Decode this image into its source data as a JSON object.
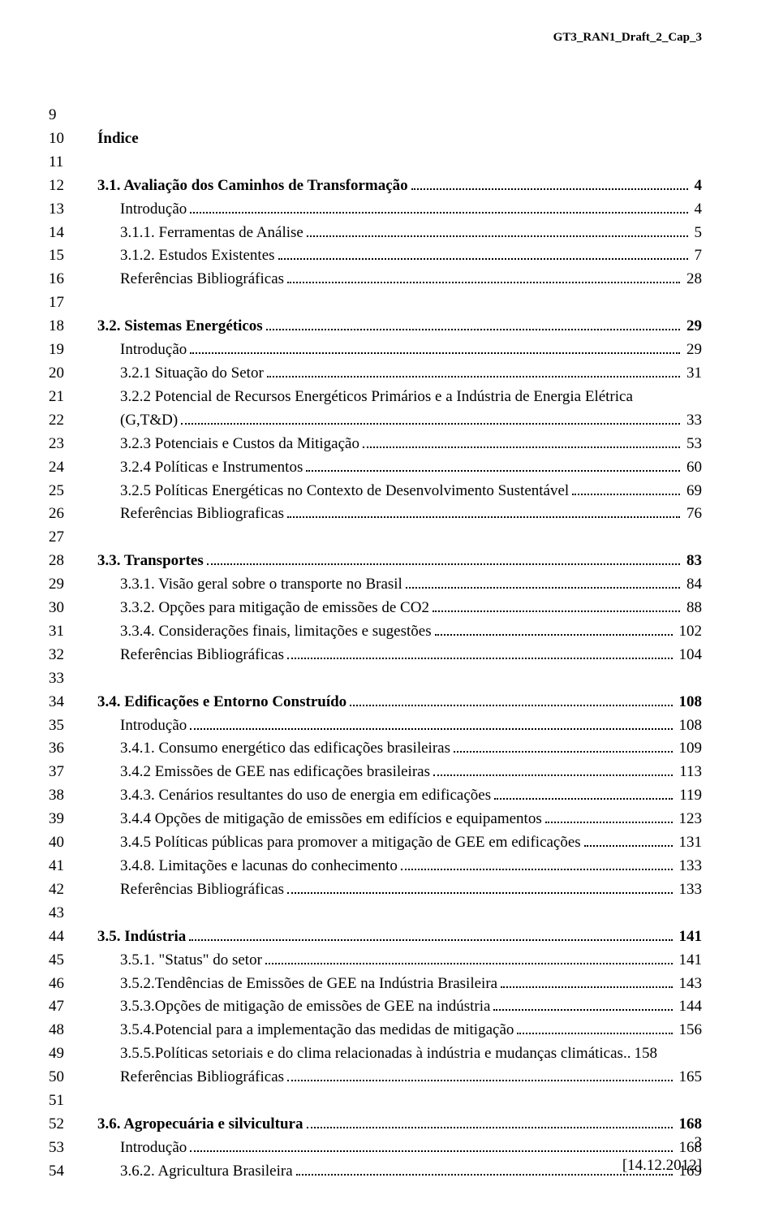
{
  "header": "GT3_RAN1_Draft_2_Cap_3",
  "title": "Índice",
  "lines": [
    {
      "n": "9",
      "type": "blank"
    },
    {
      "n": "10",
      "type": "title"
    },
    {
      "n": "11",
      "type": "blank"
    },
    {
      "n": "12",
      "type": "entry",
      "bold": true,
      "indent": 0,
      "text": "3.1. Avaliação dos Caminhos de Transformação",
      "page": "4"
    },
    {
      "n": "13",
      "type": "entry",
      "bold": false,
      "indent": 1,
      "text": "Introdução",
      "page": "4"
    },
    {
      "n": "14",
      "type": "entry",
      "bold": false,
      "indent": 1,
      "text": "3.1.1. Ferramentas de Análise",
      "page": "5"
    },
    {
      "n": "15",
      "type": "entry",
      "bold": false,
      "indent": 1,
      "text": "3.1.2. Estudos Existentes",
      "page": "7"
    },
    {
      "n": "16",
      "type": "entry",
      "bold": false,
      "indent": 1,
      "text": "Referências Bibliográficas",
      "page": "28"
    },
    {
      "n": "17",
      "type": "blank"
    },
    {
      "n": "18",
      "type": "entry",
      "bold": true,
      "indent": 0,
      "text": "3.2. Sistemas Energéticos",
      "page": "29"
    },
    {
      "n": "19",
      "type": "entry",
      "bold": false,
      "indent": 1,
      "text": "Introdução",
      "page": "29"
    },
    {
      "n": "20",
      "type": "entry",
      "bold": false,
      "indent": 1,
      "text": "3.2.1 Situação do Setor",
      "page": "31"
    },
    {
      "n": "21",
      "type": "wraptop",
      "bold": false,
      "indent": 1,
      "text": "3.2.2 Potencial de Recursos Energéticos Primários e a Indústria de Energia Elétrica"
    },
    {
      "n": "22",
      "type": "wrapbot",
      "bold": false,
      "indent": 1,
      "text": "(G,T&D)",
      "page": "33"
    },
    {
      "n": "23",
      "type": "entry",
      "bold": false,
      "indent": 1,
      "text": "3.2.3 Potenciais e Custos da Mitigação",
      "page": "53"
    },
    {
      "n": "24",
      "type": "entry",
      "bold": false,
      "indent": 1,
      "text": "3.2.4 Políticas e Instrumentos",
      "page": "60"
    },
    {
      "n": "25",
      "type": "entry",
      "bold": false,
      "indent": 1,
      "text": "3.2.5 Políticas Energéticas no Contexto de Desenvolvimento Sustentável",
      "page": "69"
    },
    {
      "n": "26",
      "type": "entry",
      "bold": false,
      "indent": 1,
      "text": "Referências Bibliograficas",
      "page": "76"
    },
    {
      "n": "27",
      "type": "blank"
    },
    {
      "n": "28",
      "type": "entry",
      "bold": true,
      "indent": 0,
      "text": "3.3. Transportes",
      "page": "83"
    },
    {
      "n": "29",
      "type": "entry",
      "bold": false,
      "indent": 1,
      "text": "3.3.1. Visão geral sobre o transporte no Brasil",
      "page": "84"
    },
    {
      "n": "30",
      "type": "entry",
      "bold": false,
      "indent": 1,
      "text": "3.3.2. Opções para mitigação de emissões de CO2",
      "page": "88"
    },
    {
      "n": "31",
      "type": "entry",
      "bold": false,
      "indent": 1,
      "text": "3.3.4. Considerações finais, limitações e sugestões",
      "page": "102"
    },
    {
      "n": "32",
      "type": "entry",
      "bold": false,
      "indent": 1,
      "text": "Referências Bibliográficas",
      "page": "104"
    },
    {
      "n": "33",
      "type": "blank"
    },
    {
      "n": "34",
      "type": "entry",
      "bold": true,
      "indent": 0,
      "text": "3.4. Edificações e Entorno Construído",
      "page": "108"
    },
    {
      "n": "35",
      "type": "entry",
      "bold": false,
      "indent": 1,
      "text": "Introdução",
      "page": "108"
    },
    {
      "n": "36",
      "type": "entry",
      "bold": false,
      "indent": 1,
      "text": "3.4.1. Consumo energético das edificações brasileiras",
      "page": "109"
    },
    {
      "n": "37",
      "type": "entry",
      "bold": false,
      "indent": 1,
      "text": "3.4.2 Emissões de GEE nas edificações brasileiras",
      "page": "113"
    },
    {
      "n": "38",
      "type": "entry",
      "bold": false,
      "indent": 1,
      "text": "3.4.3. Cenários resultantes do uso de energia em edificações",
      "page": "119"
    },
    {
      "n": "39",
      "type": "entry",
      "bold": false,
      "indent": 1,
      "text": "3.4.4 Opções de mitigação de emissões em edifícios e equipamentos",
      "page": "123"
    },
    {
      "n": "40",
      "type": "entry",
      "bold": false,
      "indent": 1,
      "text": "3.4.5 Políticas públicas para promover a mitigação de GEE em edificações",
      "page": "131"
    },
    {
      "n": "41",
      "type": "entry",
      "bold": false,
      "indent": 1,
      "text": "3.4.8. Limitações e lacunas do conhecimento",
      "page": "133"
    },
    {
      "n": "42",
      "type": "entry",
      "bold": false,
      "indent": 1,
      "text": "Referências Bibliográficas",
      "page": "133"
    },
    {
      "n": "43",
      "type": "blank"
    },
    {
      "n": "44",
      "type": "entry",
      "bold": true,
      "indent": 0,
      "text": "3.5. Indústria",
      "page": "141"
    },
    {
      "n": "45",
      "type": "entry",
      "bold": false,
      "indent": 1,
      "text": "3.5.1. \"Status\" do setor",
      "page": "141"
    },
    {
      "n": "46",
      "type": "entry",
      "bold": false,
      "indent": 1,
      "text": "3.5.2.Tendências de Emissões de GEE na Indústria Brasileira",
      "page": "143"
    },
    {
      "n": "47",
      "type": "entry",
      "bold": false,
      "indent": 1,
      "text": "3.5.3.Opções de mitigação de emissões de GEE na indústria",
      "page": "144"
    },
    {
      "n": "48",
      "type": "entry",
      "bold": false,
      "indent": 1,
      "text": "3.5.4.Potencial para a implementação das medidas de mitigação",
      "page": "156"
    },
    {
      "n": "49",
      "type": "entry",
      "bold": false,
      "indent": 1,
      "text": "3.5.5.Políticas setoriais e do clima relacionadas à indústria e mudanças climáticas",
      "page": "158",
      "nodots": true
    },
    {
      "n": "50",
      "type": "entry",
      "bold": false,
      "indent": 1,
      "text": "Referências Bibliográficas",
      "page": "165"
    },
    {
      "n": "51",
      "type": "blank"
    },
    {
      "n": "52",
      "type": "entry",
      "bold": true,
      "indent": 0,
      "text": "3.6. Agropecuária e silvicultura",
      "page": "168"
    },
    {
      "n": "53",
      "type": "entry",
      "bold": false,
      "indent": 1,
      "text": "Introdução",
      "page": "168"
    },
    {
      "n": "54",
      "type": "entry",
      "bold": false,
      "indent": 1,
      "text": "3.6.2. Agricultura Brasileira",
      "page": "169"
    }
  ],
  "footer": {
    "page": "3",
    "date": "[14.12.2012]"
  }
}
